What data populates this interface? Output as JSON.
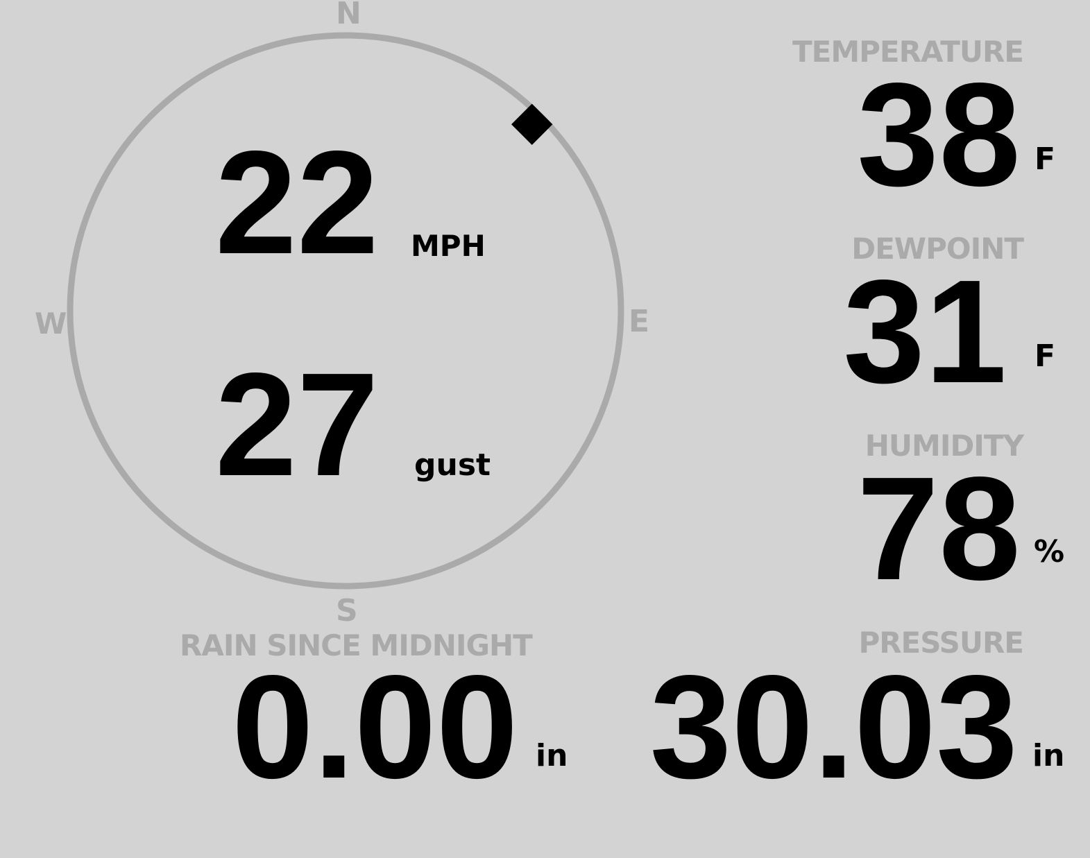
{
  "compass": {
    "north": "N",
    "south": "S",
    "east": "E",
    "west": "W",
    "wind_direction_deg": 45,
    "ring_color": "#aaaaaa",
    "marker_color": "#000000"
  },
  "wind": {
    "speed": "22",
    "speed_unit": "MPH",
    "gust": "27",
    "gust_label": "gust"
  },
  "temperature": {
    "label": "TEMPERATURE",
    "value": "38",
    "unit": "F"
  },
  "dewpoint": {
    "label": "DEWPOINT",
    "value": "31",
    "unit": "F"
  },
  "humidity": {
    "label": "HUMIDITY",
    "value": "78",
    "unit": "%"
  },
  "rain": {
    "label": "RAIN SINCE MIDNIGHT",
    "value": "0.00",
    "unit": "in"
  },
  "pressure": {
    "label": "PRESSURE",
    "value": "30.03",
    "unit": "in"
  },
  "colors": {
    "background": "#d3d3d3",
    "label": "#aaaaaa",
    "value": "#000000"
  }
}
